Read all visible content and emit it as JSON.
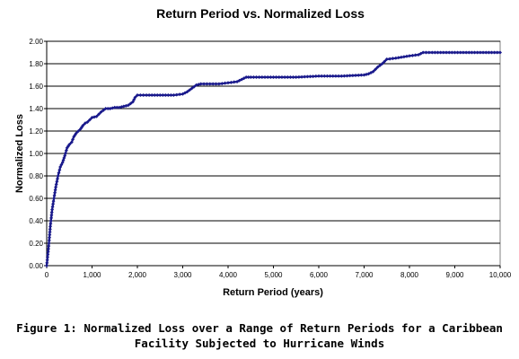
{
  "chart_data": {
    "type": "line",
    "title": "Return Period vs. Normalized Loss",
    "xlabel": "Return Period (years)",
    "ylabel": "Normalized Loss",
    "xlim": [
      0,
      10000
    ],
    "ylim": [
      0,
      2.0
    ],
    "x_ticks": [
      "0",
      "1,000",
      "2,000",
      "3,000",
      "4,000",
      "5,000",
      "6,000",
      "7,000",
      "8,000",
      "9,000",
      "10,000"
    ],
    "y_ticks": [
      "0.00",
      "0.20",
      "0.40",
      "0.60",
      "0.80",
      "1.00",
      "1.20",
      "1.40",
      "1.60",
      "1.80",
      "2.00"
    ],
    "grid": "horizontal",
    "legend": "none",
    "series_color": "#1a1a8c",
    "x": [
      0,
      25,
      50,
      80,
      120,
      160,
      200,
      250,
      300,
      350,
      400,
      450,
      500,
      550,
      600,
      650,
      700,
      750,
      800,
      850,
      900,
      950,
      1000,
      1100,
      1200,
      1300,
      1400,
      1500,
      1600,
      1700,
      1800,
      1900,
      1950,
      2000,
      2200,
      2500,
      2800,
      3000,
      3100,
      3200,
      3300,
      3400,
      3600,
      3800,
      4000,
      4200,
      4300,
      4400,
      4500,
      5000,
      5500,
      6000,
      6500,
      7000,
      7100,
      7200,
      7300,
      7400,
      7500,
      7700,
      8000,
      8200,
      8300,
      8500,
      9000,
      9500,
      10000
    ],
    "y": [
      0.0,
      0.1,
      0.2,
      0.35,
      0.5,
      0.6,
      0.7,
      0.8,
      0.88,
      0.92,
      0.98,
      1.05,
      1.08,
      1.1,
      1.15,
      1.18,
      1.2,
      1.22,
      1.25,
      1.27,
      1.28,
      1.3,
      1.32,
      1.33,
      1.37,
      1.4,
      1.4,
      1.41,
      1.41,
      1.42,
      1.43,
      1.46,
      1.5,
      1.52,
      1.52,
      1.52,
      1.52,
      1.53,
      1.55,
      1.58,
      1.61,
      1.62,
      1.62,
      1.62,
      1.63,
      1.64,
      1.66,
      1.68,
      1.68,
      1.68,
      1.68,
      1.69,
      1.69,
      1.7,
      1.71,
      1.73,
      1.77,
      1.8,
      1.84,
      1.85,
      1.87,
      1.88,
      1.9,
      1.9,
      1.9,
      1.9,
      1.9
    ]
  },
  "caption": {
    "line1": "Figure 1: Normalized Loss over a Range of Return Periods for a Caribbean",
    "line2": "Facility Subjected to Hurricane Winds"
  }
}
